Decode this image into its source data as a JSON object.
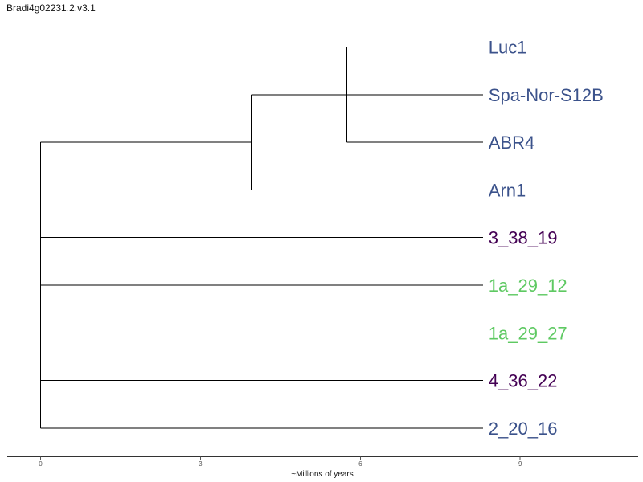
{
  "title": "Bradi4g02231.2.v3.1",
  "chart_data": {
    "type": "dendrogram",
    "xlabel": "~Millions of years",
    "xticks": [
      0,
      3,
      6,
      9
    ],
    "root_x": 0,
    "tip_x": 8.3,
    "leaves": [
      {
        "id": "Luc1",
        "label": "Luc1",
        "color": "#3b528b"
      },
      {
        "id": "SpaNorS12B",
        "label": "Spa-Nor-S12B",
        "color": "#3b528b"
      },
      {
        "id": "ABR4",
        "label": "ABR4",
        "color": "#3b528b"
      },
      {
        "id": "Arn1",
        "label": "Arn1",
        "color": "#3b528b"
      },
      {
        "id": "L3_38_19",
        "label": "3_38_19",
        "color": "#440154"
      },
      {
        "id": "L1a_29_12",
        "label": "1a_29_12",
        "color": "#5ec962"
      },
      {
        "id": "L1a_29_27",
        "label": "1a_29_27",
        "color": "#5ec962"
      },
      {
        "id": "L4_36_22",
        "label": "4_36_22",
        "color": "#440154"
      },
      {
        "id": "L2_20_16",
        "label": "2_20_16",
        "color": "#3b528b"
      }
    ],
    "clades": [
      {
        "id": "c1",
        "height": 5.75,
        "children": [
          "Luc1",
          "SpaNorS12B",
          "ABR4"
        ]
      },
      {
        "id": "c2",
        "height": 3.95,
        "children": [
          "c1",
          "Arn1"
        ]
      },
      {
        "id": "root",
        "height": 0,
        "children": [
          "c2",
          "L3_38_19",
          "L1a_29_12",
          "L1a_29_27",
          "L4_36_22",
          "L2_20_16"
        ]
      }
    ]
  }
}
